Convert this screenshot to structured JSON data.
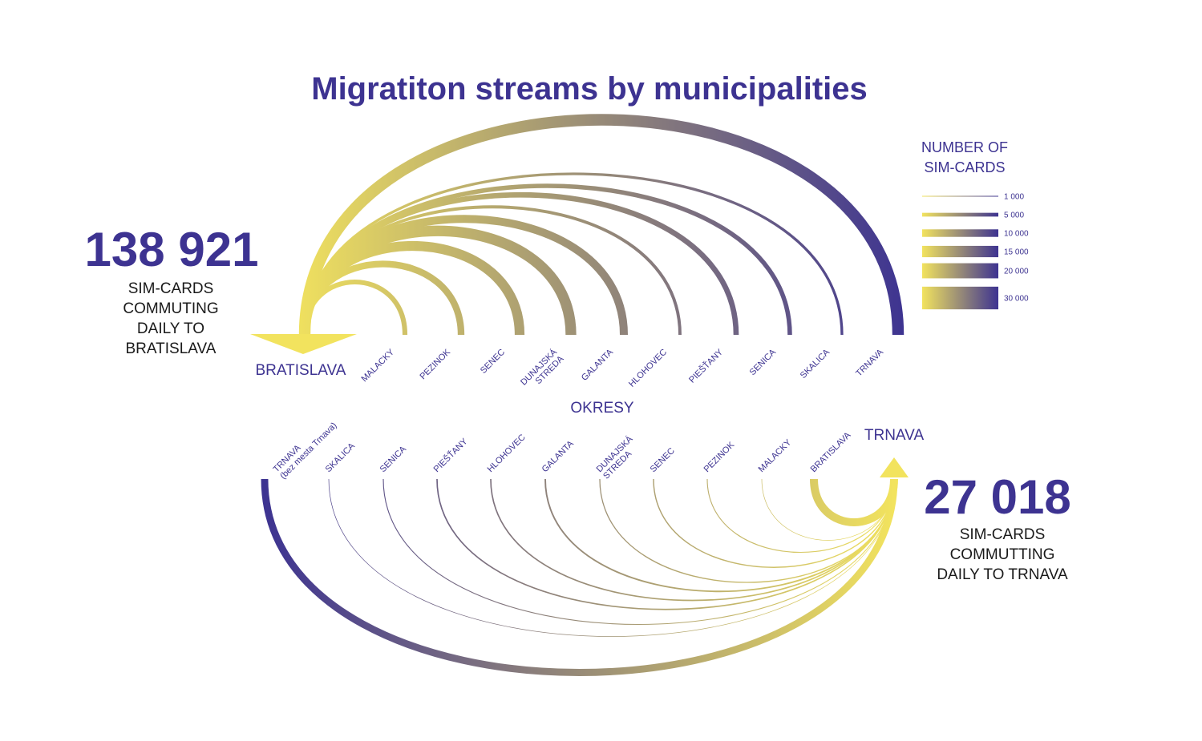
{
  "colors": {
    "purple": "#3d3391",
    "yellow": "#f2e35e"
  },
  "title": "Migratiton streams by municipalities",
  "okresy_label": "OKRESY",
  "top": {
    "hub_label": "BRATISLAVA",
    "total": "138 921",
    "desc": [
      "SIM-CARDS",
      "COMMUTING",
      "DAILY TO",
      "BRATISLAVA"
    ],
    "flows": [
      {
        "label": [
          "MALACKY"
        ],
        "value": 5500
      },
      {
        "label": [
          "PEZINOK"
        ],
        "value": 7500
      },
      {
        "label": [
          "SENEC"
        ],
        "value": 11000
      },
      {
        "label": [
          "DUNAJSKÁ",
          "STREDA"
        ],
        "value": 12000
      },
      {
        "label": [
          "GALANTA"
        ],
        "value": 9000
      },
      {
        "label": [
          "HLOHOVEC"
        ],
        "value": 3500
      },
      {
        "label": [
          "PIEŠŤANY"
        ],
        "value": 6000
      },
      {
        "label": [
          "SENICA"
        ],
        "value": 5000
      },
      {
        "label": [
          "SKALICA"
        ],
        "value": 3000
      },
      {
        "label": [
          "TRNAVA"
        ],
        "value": 13000
      }
    ]
  },
  "bottom": {
    "hub_label": "TRNAVA",
    "total": "27 018",
    "desc": [
      "SIM-CARDS",
      "COMMUTTING",
      "DAILY TO TRNAVA"
    ],
    "flows": [
      {
        "label": [
          "TRNAVA",
          "(bez mesta Trnava)"
        ],
        "value": 8000
      },
      {
        "label": [
          "SKALICA"
        ],
        "value": 300
      },
      {
        "label": [
          "SENICA"
        ],
        "value": 1000
      },
      {
        "label": [
          "PIEŠŤANY"
        ],
        "value": 1500
      },
      {
        "label": [
          "HLOHOVEC"
        ],
        "value": 1500
      },
      {
        "label": [
          "GALANTA"
        ],
        "value": 1700
      },
      {
        "label": [
          "DUNAJSKÁ",
          "STREDA"
        ],
        "value": 1200
      },
      {
        "label": [
          "SENEC"
        ],
        "value": 1300
      },
      {
        "label": [
          "PEZINOK"
        ],
        "value": 1000
      },
      {
        "label": [
          "MALACKY"
        ],
        "value": 400
      },
      {
        "label": [
          "BRATISLAVA"
        ],
        "value": 9000
      }
    ]
  },
  "legend": {
    "title": [
      "NUMBER OF",
      "SIM-CARDS"
    ],
    "items": [
      {
        "label": "1 000",
        "value": 1000
      },
      {
        "label": "5 000",
        "value": 5000
      },
      {
        "label": "10 000",
        "value": 10000
      },
      {
        "label": "15 000",
        "value": 15000
      },
      {
        "label": "20 000",
        "value": 20000
      },
      {
        "label": "30 000",
        "value": 30000
      }
    ]
  }
}
